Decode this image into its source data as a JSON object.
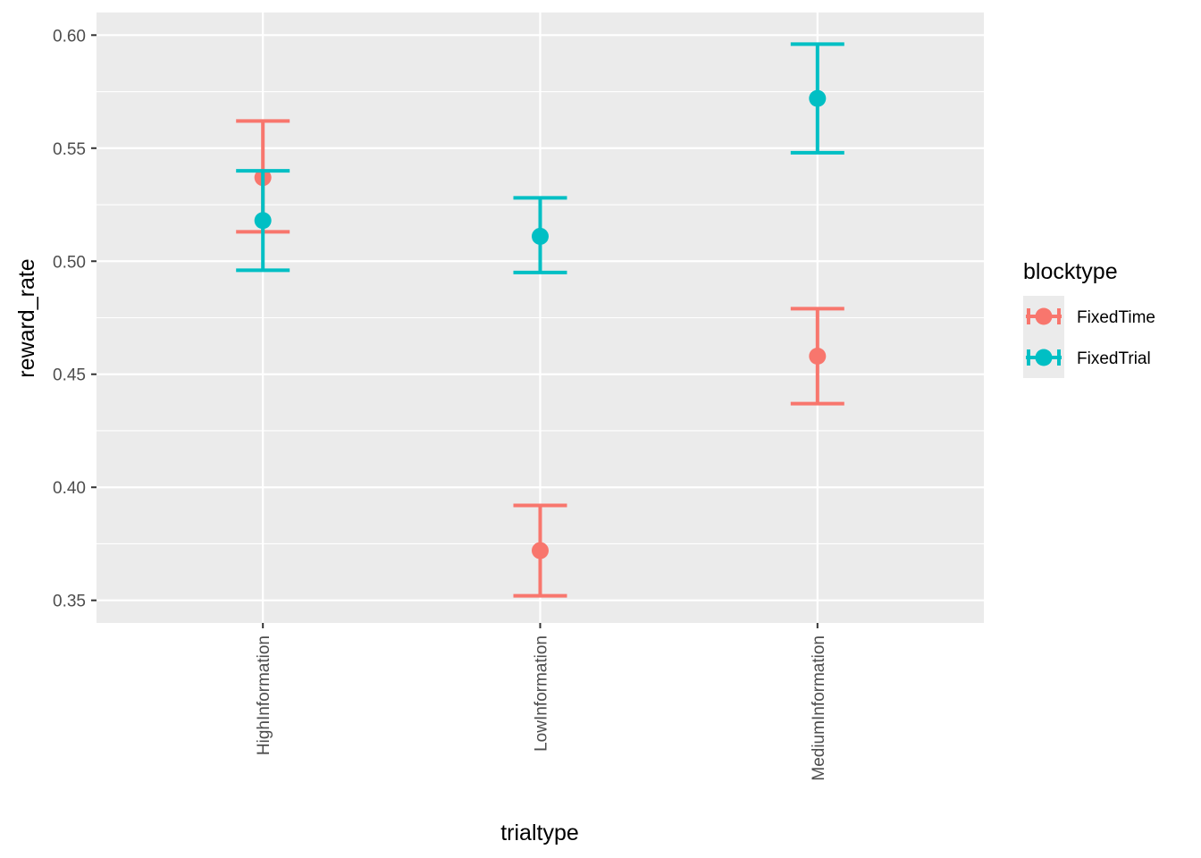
{
  "chart_data": {
    "type": "scatter",
    "subtype": "point-with-errorbars",
    "title": "",
    "xlabel": "trialtype",
    "ylabel": "reward_rate",
    "categories": [
      "HighInformation",
      "LowInformation",
      "MediumInformation"
    ],
    "ylim": [
      0.34,
      0.61
    ],
    "yticks": [
      0.35,
      0.4,
      0.45,
      0.5,
      0.55,
      0.6
    ],
    "ytick_labels": [
      "0.35",
      "0.40",
      "0.45",
      "0.50",
      "0.55",
      "0.60"
    ],
    "grid": true,
    "legend": {
      "title": "blocktype",
      "position": "right"
    },
    "series": [
      {
        "name": "FixedTime",
        "color": "#F8766D",
        "values": [
          0.537,
          0.372,
          0.458
        ],
        "lower": [
          0.513,
          0.352,
          0.437
        ],
        "upper": [
          0.562,
          0.392,
          0.479
        ]
      },
      {
        "name": "FixedTrial",
        "color": "#00BFC4",
        "values": [
          0.518,
          0.511,
          0.572
        ],
        "lower": [
          0.496,
          0.495,
          0.548
        ],
        "upper": [
          0.54,
          0.528,
          0.596
        ]
      }
    ]
  }
}
